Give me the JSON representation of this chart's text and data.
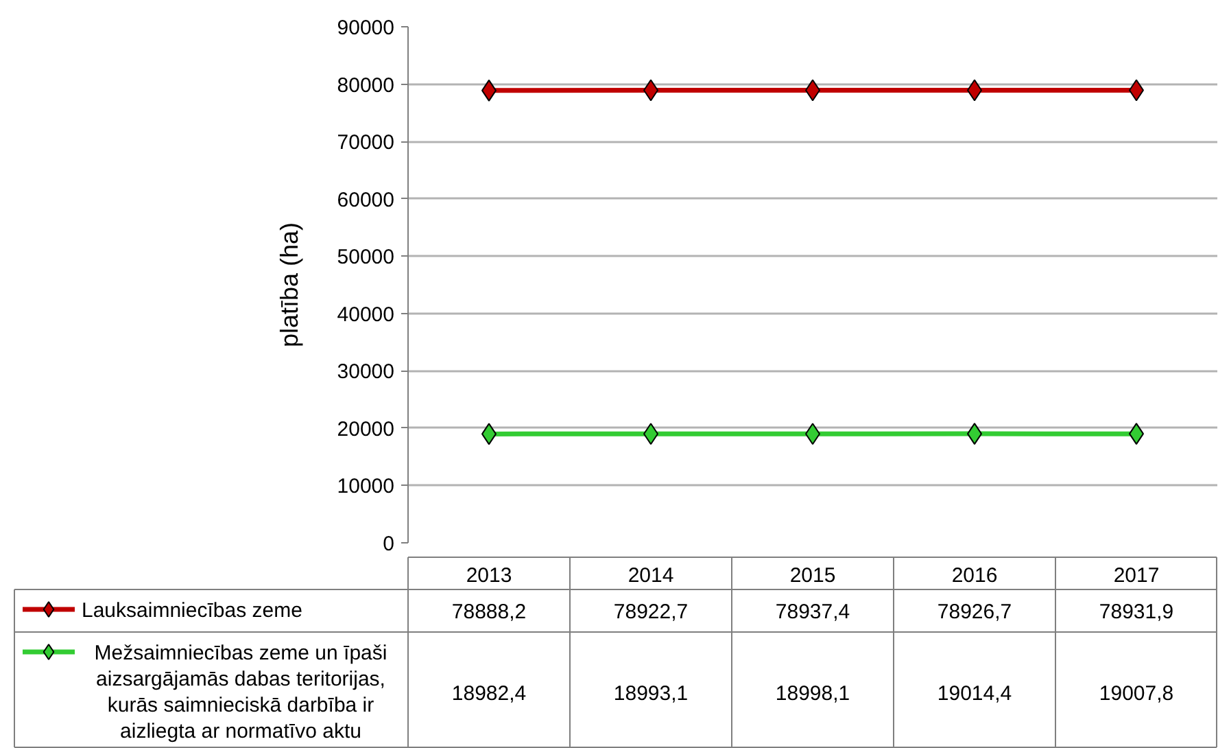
{
  "chart_data": {
    "type": "line",
    "ylabel": "platība (ha)",
    "categories": [
      "2013",
      "2014",
      "2015",
      "2016",
      "2017"
    ],
    "series": [
      {
        "name": "Lauksaimniecības zeme",
        "color": "#c00000",
        "values": [
          78888.2,
          78922.7,
          78937.4,
          78926.7,
          78931.9
        ],
        "value_labels": [
          "78888,2",
          "78922,7",
          "78937,4",
          "78926,7",
          "78931,9"
        ]
      },
      {
        "name": "Mežsaimniecības zeme un īpaši aizsargājamās dabas teritorijas, kurās saimnieciskā darbība ir aizliegta ar normatīvo aktu",
        "color": "#33cc33",
        "values": [
          18982.4,
          18993.1,
          18998.1,
          19014.4,
          19007.8
        ],
        "value_labels": [
          "18982,4",
          "18993,1",
          "18998,1",
          "19014,4",
          "19007,8"
        ]
      }
    ],
    "ylim": [
      0,
      90000
    ],
    "yticks": [
      0,
      10000,
      20000,
      30000,
      40000,
      50000,
      60000,
      70000,
      80000,
      90000
    ],
    "grid": "y",
    "legend": "bottom",
    "marker": "diamond",
    "line_style": "solid"
  }
}
